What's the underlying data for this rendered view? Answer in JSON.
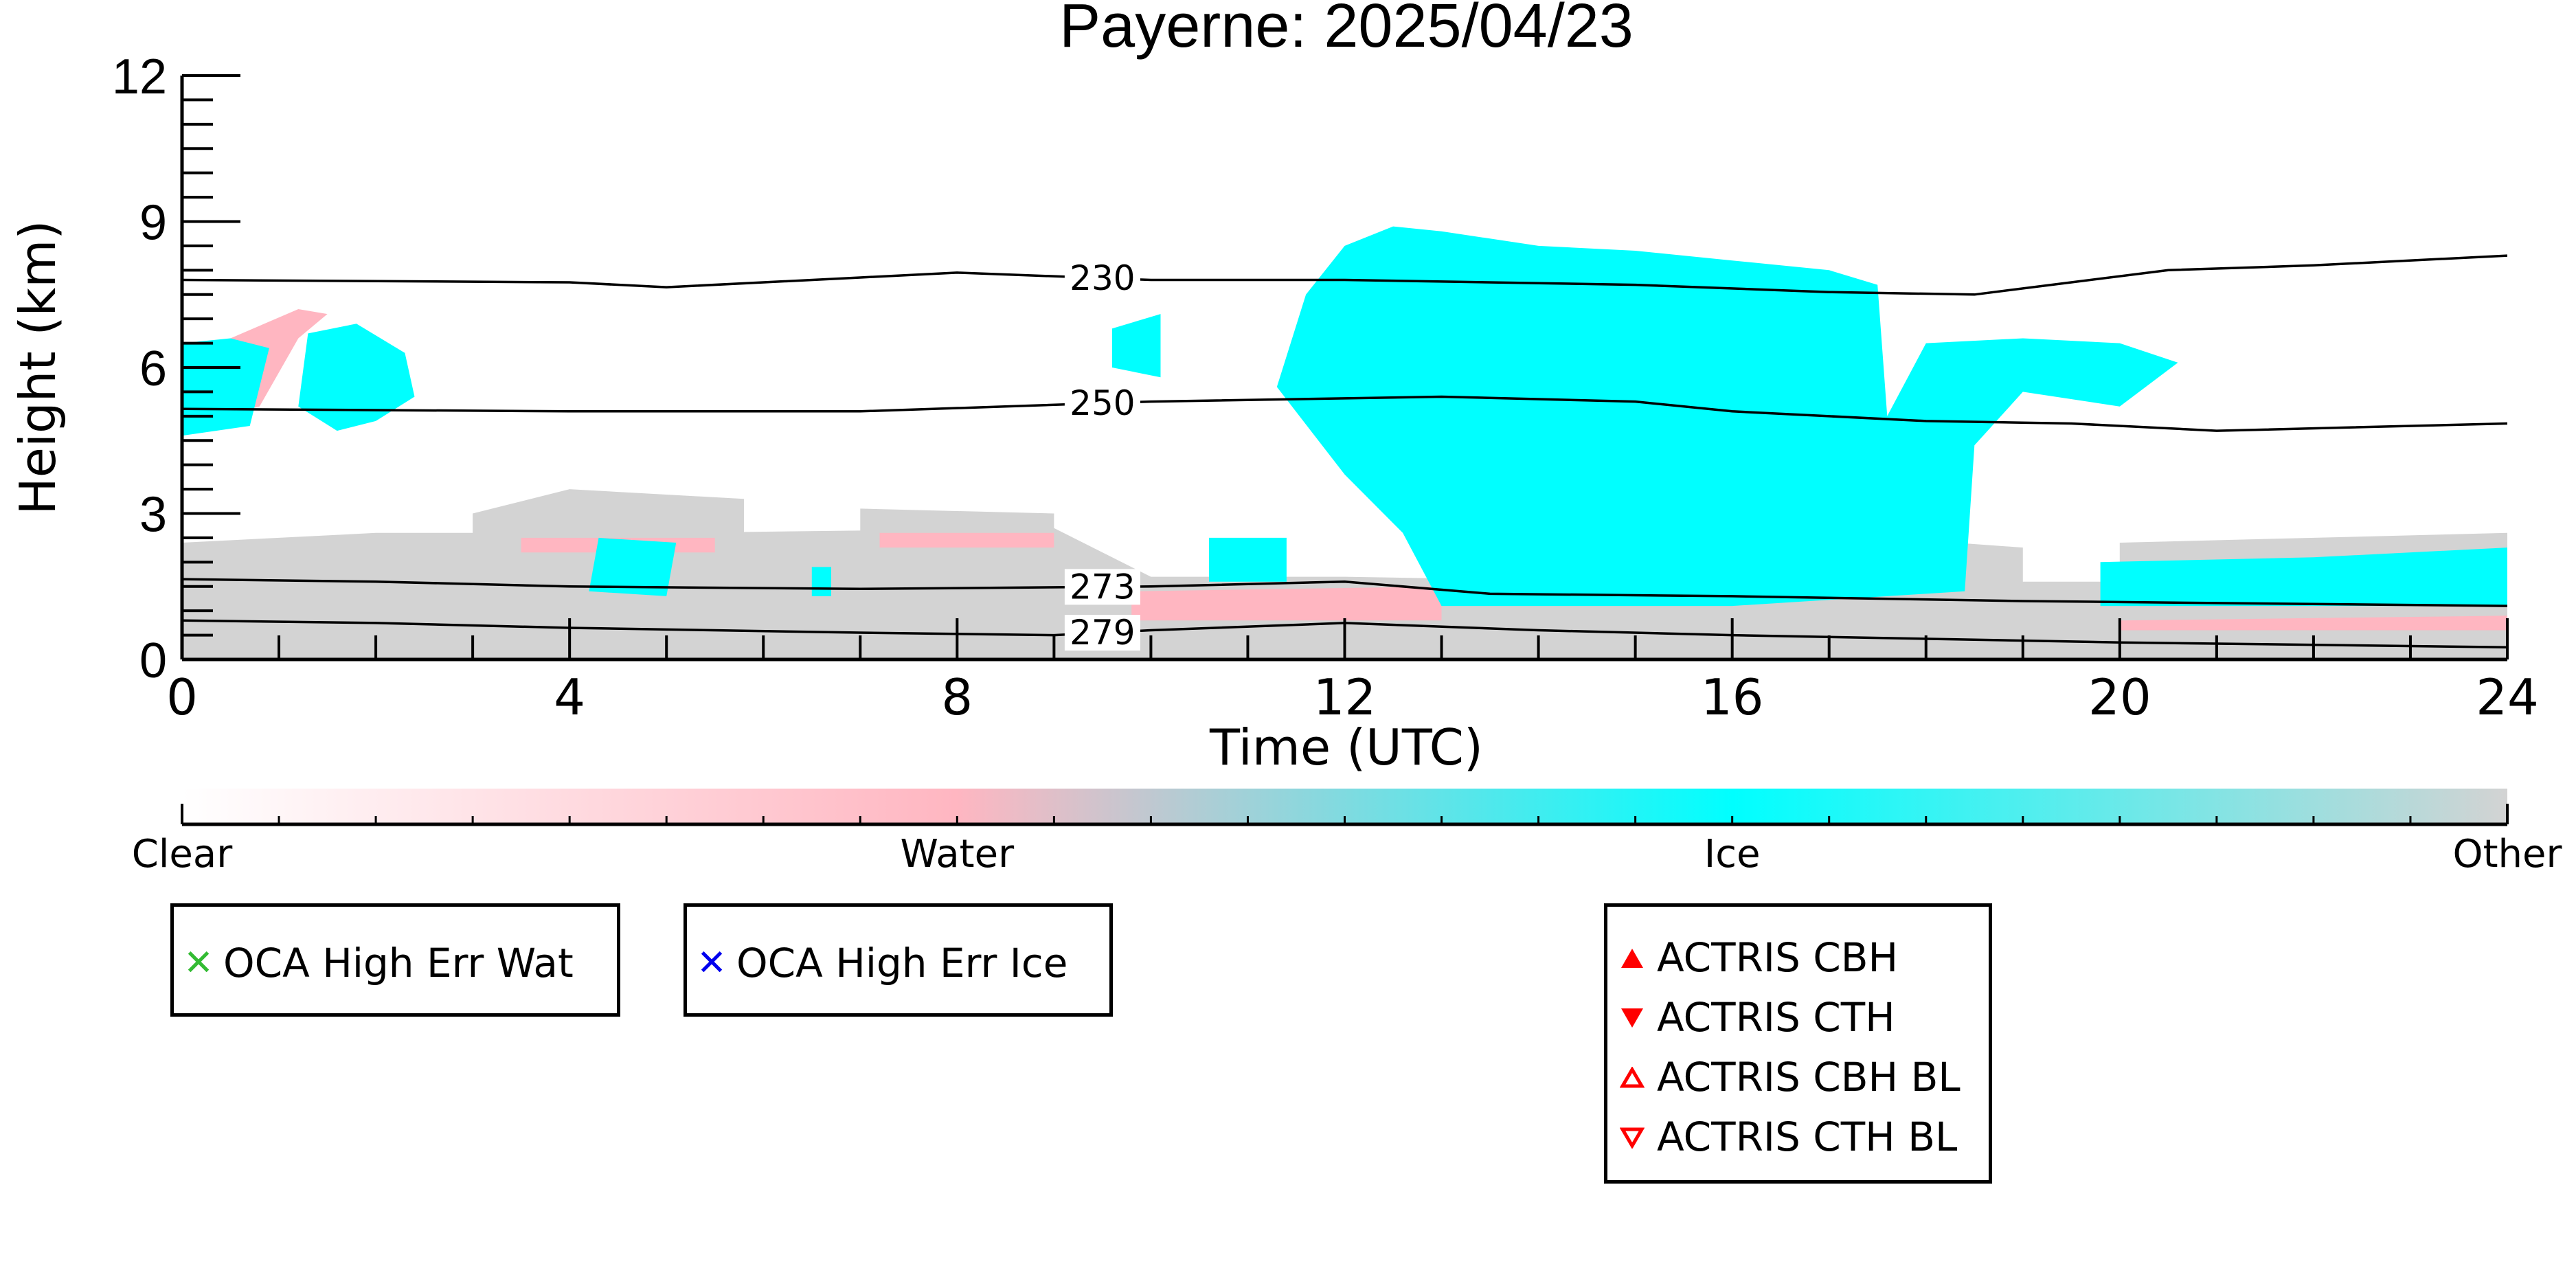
{
  "chart_data": {
    "type": "heatmap",
    "title": "Payerne: 2025/04/23",
    "xlabel": "Time (UTC)",
    "ylabel": "Height (km)",
    "xlim": [
      0,
      24
    ],
    "ylim": [
      0,
      12
    ],
    "x_ticks": [
      "0",
      "4",
      "8",
      "12",
      "16",
      "20",
      "24"
    ],
    "y_ticks": [
      "0",
      "3",
      "6",
      "9",
      "12"
    ],
    "classes": [
      {
        "name": "Clear",
        "color": "#ffffff"
      },
      {
        "name": "Water",
        "color": "#ffb6c1"
      },
      {
        "name": "Ice",
        "color": "#00ffff"
      },
      {
        "name": "Other",
        "color": "#d3d3d3"
      }
    ],
    "isotherms": [
      {
        "label": "230",
        "points": [
          [
            0,
            7.8
          ],
          [
            4,
            7.75
          ],
          [
            5,
            7.65
          ],
          [
            7,
            7.85
          ],
          [
            8,
            7.95
          ],
          [
            10,
            7.8
          ],
          [
            12,
            7.8
          ],
          [
            15,
            7.7
          ],
          [
            17,
            7.55
          ],
          [
            18.5,
            7.5
          ],
          [
            19.5,
            7.75
          ],
          [
            20.5,
            8.0
          ],
          [
            22,
            8.1
          ],
          [
            24,
            8.3
          ]
        ]
      },
      {
        "label": "250",
        "points": [
          [
            0,
            5.15
          ],
          [
            4,
            5.1
          ],
          [
            7,
            5.1
          ],
          [
            10,
            5.3
          ],
          [
            13,
            5.4
          ],
          [
            15,
            5.3
          ],
          [
            16,
            5.1
          ],
          [
            18,
            4.9
          ],
          [
            19.5,
            4.85
          ],
          [
            21,
            4.7
          ],
          [
            24,
            4.85
          ]
        ]
      },
      {
        "label": "273",
        "points": [
          [
            0,
            1.65
          ],
          [
            2,
            1.6
          ],
          [
            4,
            1.5
          ],
          [
            7,
            1.45
          ],
          [
            10,
            1.5
          ],
          [
            12,
            1.6
          ],
          [
            13.5,
            1.35
          ],
          [
            16,
            1.3
          ],
          [
            19,
            1.2
          ],
          [
            24,
            1.1
          ]
        ]
      },
      {
        "label": "279",
        "points": [
          [
            0,
            0.8
          ],
          [
            2,
            0.75
          ],
          [
            4,
            0.65
          ],
          [
            7,
            0.55
          ],
          [
            9,
            0.5
          ],
          [
            10,
            0.6
          ],
          [
            12,
            0.75
          ],
          [
            14,
            0.6
          ],
          [
            16,
            0.5
          ],
          [
            20,
            0.35
          ],
          [
            24,
            0.25
          ]
        ]
      }
    ],
    "regions": [
      {
        "class": "Other",
        "polygon": [
          [
            0,
            0
          ],
          [
            24,
            0
          ],
          [
            24,
            1.5
          ],
          [
            20,
            1.6
          ],
          [
            18,
            1.6
          ],
          [
            15,
            1.6
          ],
          [
            12,
            1.7
          ],
          [
            10,
            1.7
          ],
          [
            9,
            2.7
          ],
          [
            5,
            2.6
          ],
          [
            2,
            2.6
          ],
          [
            0,
            2.4
          ]
        ]
      },
      {
        "class": "Other",
        "polygon": [
          [
            3,
            2.3
          ],
          [
            5.8,
            2.3
          ],
          [
            5.8,
            3.3
          ],
          [
            4,
            3.5
          ],
          [
            3,
            3.0
          ]
        ]
      },
      {
        "class": "Other",
        "polygon": [
          [
            7,
            2.5
          ],
          [
            9,
            2.4
          ],
          [
            9,
            3.0
          ],
          [
            7,
            3.1
          ]
        ]
      },
      {
        "class": "Other",
        "polygon": [
          [
            18.2,
            1.3
          ],
          [
            19,
            1.3
          ],
          [
            19,
            2.3
          ],
          [
            18.3,
            2.4
          ]
        ]
      },
      {
        "class": "Other",
        "polygon": [
          [
            20,
            1.6
          ],
          [
            24,
            1.6
          ],
          [
            24,
            2.6
          ],
          [
            20,
            2.4
          ]
        ]
      },
      {
        "class": "Water",
        "polygon": [
          [
            3.5,
            2.2
          ],
          [
            5.5,
            2.2
          ],
          [
            5.5,
            2.5
          ],
          [
            3.5,
            2.5
          ]
        ]
      },
      {
        "class": "Water",
        "polygon": [
          [
            7.2,
            2.3
          ],
          [
            9,
            2.3
          ],
          [
            9,
            2.6
          ],
          [
            7.2,
            2.6
          ]
        ]
      },
      {
        "class": "Water",
        "polygon": [
          [
            0,
            4.8
          ],
          [
            0.8,
            5.2
          ],
          [
            1.2,
            6.6
          ],
          [
            1.5,
            7.1
          ],
          [
            1.2,
            7.2
          ],
          [
            0.5,
            6.6
          ]
        ]
      },
      {
        "class": "Water",
        "polygon": [
          [
            9.8,
            0.8
          ],
          [
            13,
            0.8
          ],
          [
            13,
            1.5
          ],
          [
            9.8,
            1.4
          ]
        ]
      },
      {
        "class": "Water",
        "polygon": [
          [
            20,
            0.6
          ],
          [
            24,
            0.6
          ],
          [
            24,
            0.9
          ],
          [
            20,
            0.8
          ]
        ]
      },
      {
        "class": "Ice",
        "polygon": [
          [
            0,
            4.6
          ],
          [
            0.7,
            4.8
          ],
          [
            0.9,
            6.4
          ],
          [
            0.5,
            6.6
          ],
          [
            0,
            6.5
          ]
        ]
      },
      {
        "class": "Ice",
        "polygon": [
          [
            1.2,
            5.2
          ],
          [
            1.6,
            4.7
          ],
          [
            2.0,
            4.9
          ],
          [
            2.4,
            5.4
          ],
          [
            2.3,
            6.3
          ],
          [
            1.8,
            6.9
          ],
          [
            1.3,
            6.7
          ]
        ]
      },
      {
        "class": "Ice",
        "polygon": [
          [
            4.2,
            1.4
          ],
          [
            5,
            1.3
          ],
          [
            5.1,
            2.4
          ],
          [
            4.3,
            2.5
          ]
        ]
      },
      {
        "class": "Ice",
        "polygon": [
          [
            6.5,
            1.3
          ],
          [
            6.7,
            1.3
          ],
          [
            6.7,
            1.9
          ],
          [
            6.5,
            1.9
          ]
        ]
      },
      {
        "class": "Ice",
        "polygon": [
          [
            9.6,
            6.0
          ],
          [
            10.1,
            5.8
          ],
          [
            10.1,
            7.1
          ],
          [
            9.6,
            6.8
          ]
        ]
      },
      {
        "class": "Ice",
        "polygon": [
          [
            10.6,
            1.6
          ],
          [
            11.4,
            1.6
          ],
          [
            11.4,
            2.5
          ],
          [
            10.6,
            2.5
          ]
        ]
      },
      {
        "class": "Ice",
        "polygon": [
          [
            11.3,
            5.6
          ],
          [
            11.6,
            7.5
          ],
          [
            12,
            8.5
          ],
          [
            12.5,
            8.9
          ],
          [
            13,
            8.8
          ],
          [
            14,
            8.5
          ],
          [
            15,
            8.4
          ],
          [
            16,
            8.2
          ],
          [
            17,
            8.0
          ],
          [
            17.5,
            7.7
          ],
          [
            17.6,
            5.0
          ],
          [
            18,
            6.5
          ],
          [
            19,
            6.6
          ],
          [
            20,
            6.5
          ],
          [
            20.6,
            6.1
          ],
          [
            20,
            5.2
          ],
          [
            19,
            5.5
          ],
          [
            18.5,
            4.4
          ],
          [
            18.4,
            1.4
          ],
          [
            16,
            1.1
          ],
          [
            13,
            1.1
          ],
          [
            12.6,
            2.6
          ],
          [
            12,
            3.8
          ],
          [
            11.3,
            5.6
          ]
        ]
      },
      {
        "class": "Ice",
        "polygon": [
          [
            19.8,
            1.1
          ],
          [
            24,
            1.1
          ],
          [
            24,
            2.3
          ],
          [
            22,
            2.1
          ],
          [
            19.8,
            2.0
          ]
        ]
      }
    ]
  },
  "legend": {
    "classes_labels": [
      "Clear",
      "Water",
      "Ice",
      "Other"
    ],
    "oca_water": {
      "label": "OCA High Err Wat",
      "color": "#33bb33"
    },
    "oca_ice": {
      "label": "OCA High Err Ice",
      "color": "#0000ee"
    },
    "actris": [
      {
        "label": "ACTRIS CBH",
        "marker": "triangle-up-filled"
      },
      {
        "label": "ACTRIS CTH",
        "marker": "triangle-down-filled"
      },
      {
        "label": "ACTRIS CBH BL",
        "marker": "triangle-up-open"
      },
      {
        "label": "ACTRIS CTH BL",
        "marker": "triangle-down-open"
      }
    ],
    "marker_color": "#ff0000"
  }
}
